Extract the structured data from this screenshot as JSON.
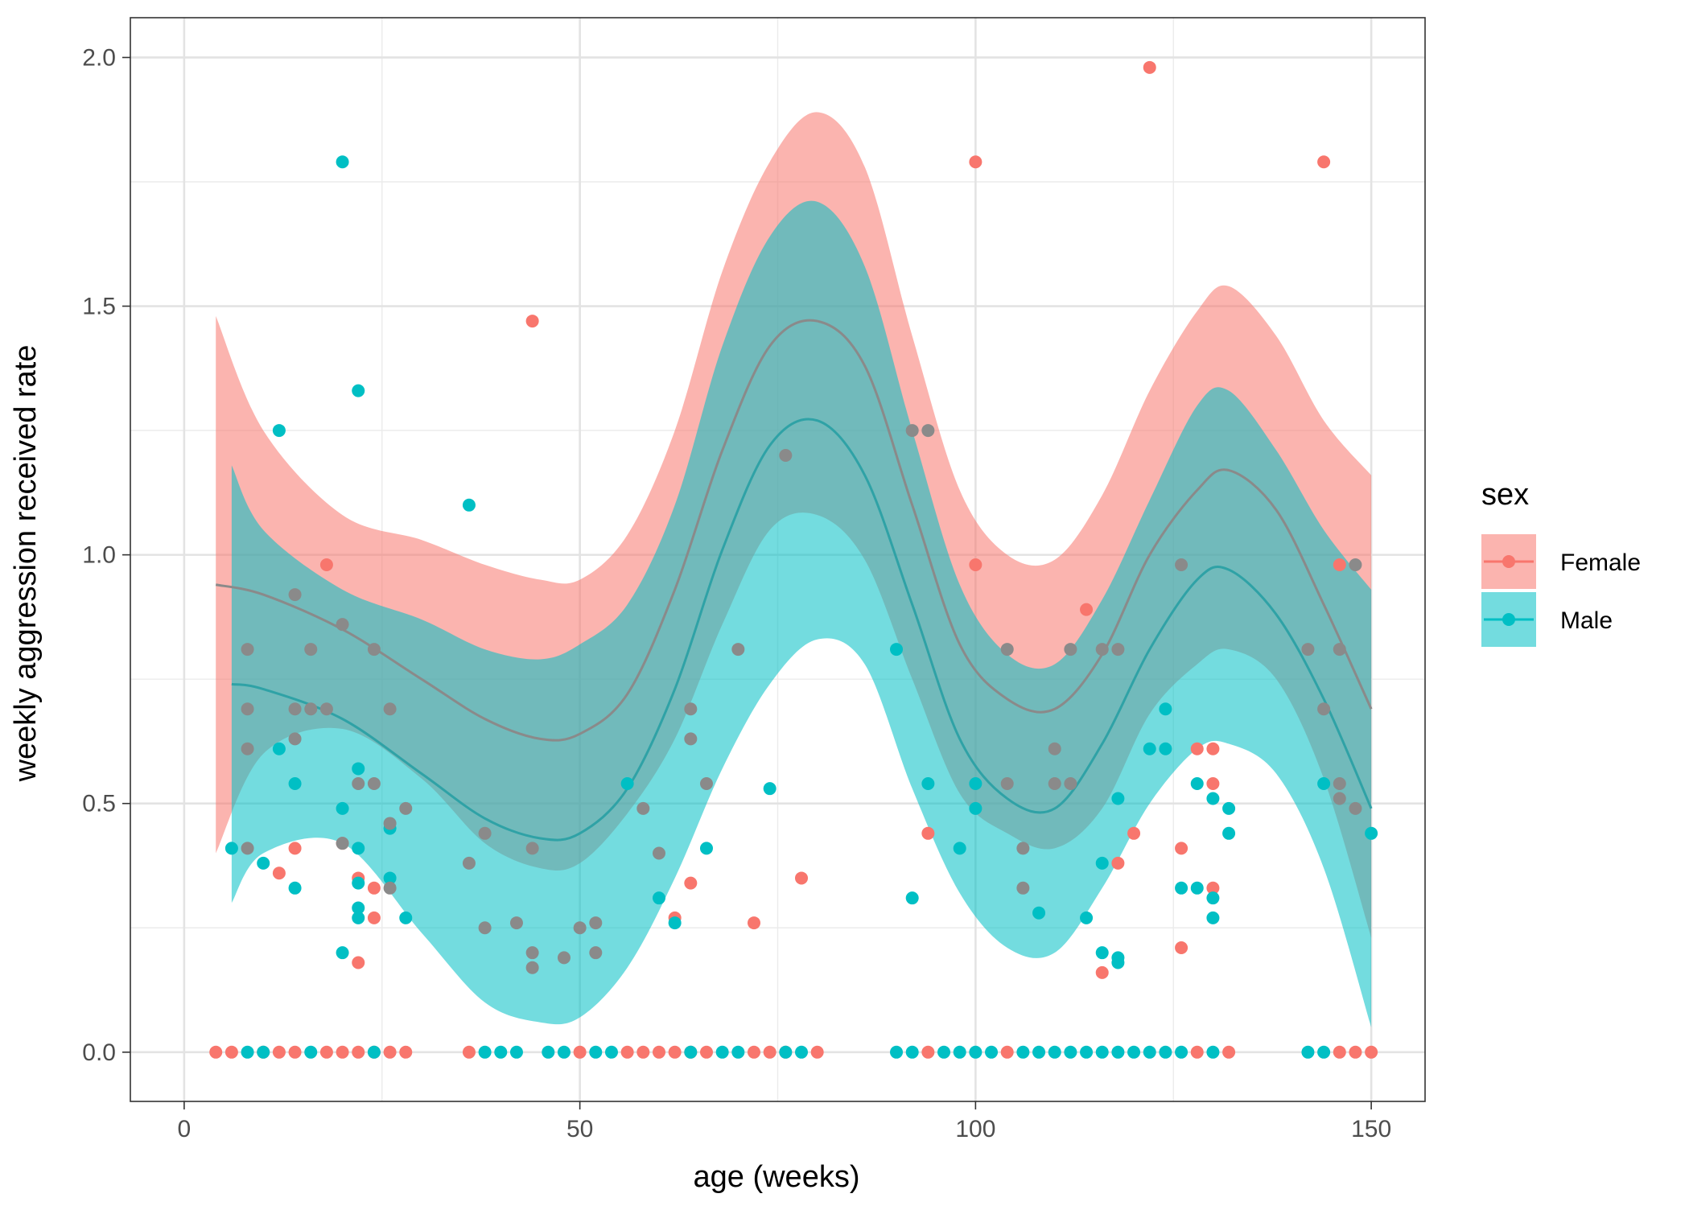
{
  "chart_data": {
    "type": "scatter",
    "title": "",
    "xlabel": "age (weeks)",
    "ylabel": "weekly aggression received rate",
    "xlim": [
      -6.8,
      156.8
    ],
    "ylim": [
      -0.099,
      2.08
    ],
    "x_ticks": [
      0,
      50,
      100,
      150
    ],
    "x_tick_labels": [
      "0",
      "50",
      "100",
      "150"
    ],
    "y_ticks": [
      0.0,
      0.5,
      1.0,
      1.5,
      2.0
    ],
    "y_tick_labels": [
      "0.0",
      "0.5",
      "1.0",
      "1.5",
      "2.0"
    ],
    "grid": true,
    "legend": {
      "title": "sex",
      "placement": "right",
      "entries": [
        {
          "label": "Female",
          "color": "#F8766D"
        },
        {
          "label": "Male",
          "color": "#00BFC4"
        }
      ]
    },
    "series": [
      {
        "name": "Female",
        "color": "#F8766D",
        "points": [
          [
            4,
            0
          ],
          [
            6,
            0
          ],
          [
            10,
            0
          ],
          [
            12,
            0
          ],
          [
            14,
            0
          ],
          [
            18,
            0
          ],
          [
            20,
            0
          ],
          [
            22,
            0
          ],
          [
            24,
            0
          ],
          [
            26,
            0
          ],
          [
            28,
            0
          ],
          [
            36,
            0
          ],
          [
            50,
            0
          ],
          [
            56,
            0
          ],
          [
            58,
            0
          ],
          [
            60,
            0
          ],
          [
            62,
            0
          ],
          [
            64,
            0
          ],
          [
            66,
            0
          ],
          [
            72,
            0
          ],
          [
            74,
            0
          ],
          [
            76,
            0
          ],
          [
            80,
            0
          ],
          [
            94,
            0
          ],
          [
            104,
            0
          ],
          [
            128,
            0
          ],
          [
            132,
            0
          ],
          [
            146,
            0
          ],
          [
            148,
            0
          ],
          [
            150,
            0
          ],
          [
            18,
            0.98
          ],
          [
            44,
            1.47
          ],
          [
            100,
            1.79
          ],
          [
            122,
            1.98
          ],
          [
            144,
            1.79
          ],
          [
            100,
            0.98
          ],
          [
            146,
            0.98
          ],
          [
            114,
            0.89
          ],
          [
            12,
            0.36
          ],
          [
            14,
            0.41
          ],
          [
            20,
            0.42
          ],
          [
            22,
            0.35
          ],
          [
            22,
            0.18
          ],
          [
            24,
            0.33
          ],
          [
            24,
            0.27
          ],
          [
            62,
            0.27
          ],
          [
            64,
            0.34
          ],
          [
            72,
            0.26
          ],
          [
            78,
            0.35
          ],
          [
            94,
            0.44
          ],
          [
            116,
            0.16
          ],
          [
            118,
            0.38
          ],
          [
            120,
            0.44
          ],
          [
            126,
            0.41
          ],
          [
            126,
            0.21
          ],
          [
            128,
            0.61
          ],
          [
            130,
            0.61
          ],
          [
            130,
            0.54
          ],
          [
            130,
            0.33
          ]
        ]
      },
      {
        "name": "Male",
        "color": "#00BFC4",
        "points": [
          [
            8,
            0
          ],
          [
            10,
            0
          ],
          [
            16,
            0
          ],
          [
            24,
            0
          ],
          [
            38,
            0
          ],
          [
            40,
            0
          ],
          [
            42,
            0
          ],
          [
            46,
            0
          ],
          [
            48,
            0
          ],
          [
            52,
            0
          ],
          [
            54,
            0
          ],
          [
            64,
            0
          ],
          [
            68,
            0
          ],
          [
            70,
            0
          ],
          [
            76,
            0
          ],
          [
            78,
            0
          ],
          [
            90,
            0
          ],
          [
            92,
            0
          ],
          [
            96,
            0
          ],
          [
            98,
            0
          ],
          [
            100,
            0
          ],
          [
            102,
            0
          ],
          [
            106,
            0
          ],
          [
            108,
            0
          ],
          [
            110,
            0
          ],
          [
            112,
            0
          ],
          [
            114,
            0
          ],
          [
            116,
            0
          ],
          [
            118,
            0
          ],
          [
            120,
            0
          ],
          [
            122,
            0
          ],
          [
            124,
            0
          ],
          [
            126,
            0
          ],
          [
            130,
            0
          ],
          [
            142,
            0
          ],
          [
            144,
            0
          ],
          [
            20,
            1.79
          ],
          [
            22,
            1.33
          ],
          [
            12,
            1.25
          ],
          [
            36,
            1.1
          ],
          [
            74,
            0.53
          ],
          [
            6,
            0.41
          ],
          [
            10,
            0.38
          ],
          [
            12,
            0.61
          ],
          [
            14,
            0.54
          ],
          [
            14,
            0.33
          ],
          [
            20,
            0.49
          ],
          [
            20,
            0.2
          ],
          [
            22,
            0.57
          ],
          [
            22,
            0.41
          ],
          [
            22,
            0.34
          ],
          [
            22,
            0.29
          ],
          [
            22,
            0.27
          ],
          [
            26,
            0.45
          ],
          [
            26,
            0.35
          ],
          [
            28,
            0.27
          ],
          [
            56,
            0.54
          ],
          [
            60,
            0.31
          ],
          [
            62,
            0.26
          ],
          [
            66,
            0.41
          ],
          [
            90,
            0.81
          ],
          [
            92,
            0.31
          ],
          [
            94,
            0.54
          ],
          [
            98,
            0.41
          ],
          [
            100,
            0.54
          ],
          [
            100,
            0.49
          ],
          [
            108,
            0.28
          ],
          [
            116,
            0.38
          ],
          [
            116,
            0.2
          ],
          [
            118,
            0.19
          ],
          [
            118,
            0.18
          ],
          [
            114,
            0.27
          ],
          [
            118,
            0.51
          ],
          [
            122,
            0.61
          ],
          [
            124,
            0.61
          ],
          [
            124,
            0.69
          ],
          [
            126,
            0.33
          ],
          [
            128,
            0.54
          ],
          [
            128,
            0.33
          ],
          [
            130,
            0.51
          ],
          [
            130,
            0.31
          ],
          [
            130,
            0.27
          ],
          [
            132,
            0.49
          ],
          [
            132,
            0.44
          ],
          [
            144,
            0.54
          ],
          [
            150,
            0.44
          ]
        ]
      },
      {
        "name": "",
        "color": "#8a8a8a",
        "points": [
          [
            8,
            0.81
          ],
          [
            8,
            0.69
          ],
          [
            8,
            0.61
          ],
          [
            8,
            0.41
          ],
          [
            14,
            0.92
          ],
          [
            14,
            0.69
          ],
          [
            14,
            0.63
          ],
          [
            16,
            0.81
          ],
          [
            16,
            0.69
          ],
          [
            18,
            0.69
          ],
          [
            20,
            0.86
          ],
          [
            20,
            0.42
          ],
          [
            22,
            0.54
          ],
          [
            24,
            0.81
          ],
          [
            24,
            0.54
          ],
          [
            26,
            0.69
          ],
          [
            26,
            0.46
          ],
          [
            26,
            0.33
          ],
          [
            28,
            0.49
          ],
          [
            36,
            0.38
          ],
          [
            38,
            0.44
          ],
          [
            38,
            0.25
          ],
          [
            42,
            0.26
          ],
          [
            44,
            0.41
          ],
          [
            44,
            0.2
          ],
          [
            44,
            0.17
          ],
          [
            48,
            0.19
          ],
          [
            50,
            0.25
          ],
          [
            52,
            0.26
          ],
          [
            52,
            0.2
          ],
          [
            58,
            0.49
          ],
          [
            60,
            0.4
          ],
          [
            64,
            0.69
          ],
          [
            64,
            0.63
          ],
          [
            66,
            0.54
          ],
          [
            70,
            0.81
          ],
          [
            76,
            1.2
          ],
          [
            92,
            1.25
          ],
          [
            94,
            1.25
          ],
          [
            104,
            0.54
          ],
          [
            104,
            0.81
          ],
          [
            106,
            0.41
          ],
          [
            106,
            0.33
          ],
          [
            110,
            0.61
          ],
          [
            110,
            0.54
          ],
          [
            112,
            0.81
          ],
          [
            112,
            0.54
          ],
          [
            116,
            0.81
          ],
          [
            118,
            0.81
          ],
          [
            126,
            0.98
          ],
          [
            142,
            0.81
          ],
          [
            144,
            0.69
          ],
          [
            146,
            0.81
          ],
          [
            146,
            0.54
          ],
          [
            146,
            0.51
          ],
          [
            148,
            0.98
          ],
          [
            148,
            0.49
          ]
        ]
      }
    ],
    "smooth": [
      {
        "name": "Female",
        "line_color": "#8a8a8a",
        "band_color": "#F8766D",
        "points": [
          [
            4,
            0.94,
            0.4,
            1.48
          ],
          [
            10,
            0.92,
            0.6,
            1.25
          ],
          [
            20,
            0.85,
            0.65,
            1.08
          ],
          [
            30,
            0.75,
            0.55,
            1.03
          ],
          [
            38,
            0.67,
            0.42,
            0.98
          ],
          [
            45,
            0.63,
            0.37,
            0.95
          ],
          [
            50,
            0.64,
            0.38,
            0.95
          ],
          [
            56,
            0.72,
            0.48,
            1.04
          ],
          [
            62,
            0.93,
            0.63,
            1.25
          ],
          [
            68,
            1.21,
            0.86,
            1.57
          ],
          [
            74,
            1.42,
            1.05,
            1.79
          ],
          [
            80,
            1.47,
            1.08,
            1.89
          ],
          [
            86,
            1.38,
            0.99,
            1.78
          ],
          [
            92,
            1.1,
            0.75,
            1.44
          ],
          [
            98,
            0.82,
            0.52,
            1.13
          ],
          [
            104,
            0.71,
            0.44,
            1.0
          ],
          [
            110,
            0.69,
            0.41,
            0.99
          ],
          [
            116,
            0.8,
            0.49,
            1.12
          ],
          [
            122,
            1.0,
            0.68,
            1.33
          ],
          [
            128,
            1.13,
            0.78,
            1.49
          ],
          [
            132,
            1.17,
            0.81,
            1.54
          ],
          [
            138,
            1.09,
            0.75,
            1.44
          ],
          [
            144,
            0.9,
            0.55,
            1.27
          ],
          [
            150,
            0.69,
            0.23,
            1.16
          ]
        ]
      },
      {
        "name": "Male",
        "line_color": "#2fa2a6",
        "band_color": "#00BFC4",
        "points": [
          [
            6,
            0.74,
            0.3,
            1.18
          ],
          [
            10,
            0.73,
            0.4,
            1.05
          ],
          [
            20,
            0.67,
            0.42,
            0.93
          ],
          [
            30,
            0.56,
            0.24,
            0.87
          ],
          [
            38,
            0.47,
            0.1,
            0.81
          ],
          [
            45,
            0.43,
            0.06,
            0.79
          ],
          [
            50,
            0.44,
            0.07,
            0.82
          ],
          [
            56,
            0.53,
            0.17,
            0.9
          ],
          [
            62,
            0.73,
            0.35,
            1.1
          ],
          [
            68,
            1.01,
            0.57,
            1.42
          ],
          [
            74,
            1.22,
            0.74,
            1.64
          ],
          [
            80,
            1.27,
            0.83,
            1.71
          ],
          [
            86,
            1.16,
            0.78,
            1.58
          ],
          [
            92,
            0.9,
            0.53,
            1.25
          ],
          [
            98,
            0.63,
            0.32,
            0.94
          ],
          [
            104,
            0.51,
            0.21,
            0.8
          ],
          [
            110,
            0.49,
            0.2,
            0.78
          ],
          [
            116,
            0.62,
            0.33,
            0.91
          ],
          [
            122,
            0.81,
            0.5,
            1.11
          ],
          [
            128,
            0.95,
            0.61,
            1.3
          ],
          [
            132,
            0.97,
            0.62,
            1.33
          ],
          [
            138,
            0.88,
            0.56,
            1.21
          ],
          [
            144,
            0.71,
            0.37,
            1.05
          ],
          [
            150,
            0.49,
            0.05,
            0.93
          ]
        ]
      }
    ]
  }
}
